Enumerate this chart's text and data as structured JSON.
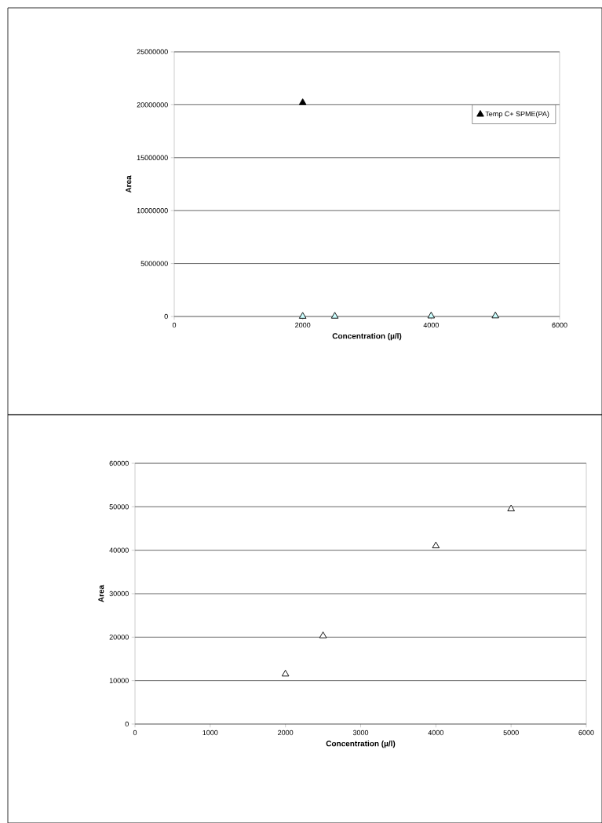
{
  "chart_data": [
    {
      "type": "scatter",
      "xlabel": "Concentration (µ/l)",
      "ylabel": "Area",
      "x": [
        2000,
        2500,
        4000,
        5000
      ],
      "xlim": [
        0,
        6000
      ],
      "xticks": [
        0,
        2000,
        4000,
        6000
      ],
      "ylim": [
        0,
        25000000
      ],
      "yticks": [
        0,
        5000000,
        10000000,
        15000000,
        20000000,
        25000000
      ],
      "grid": "y",
      "marker": "triangle",
      "legend": "top right",
      "series": [
        {
          "color": "#ccffff",
          "values": [
            11500,
            20300,
            41000,
            49500
          ]
        },
        {
          "name": "Temp C+ SPME(PA)",
          "color": "#000000",
          "x": [
            2000
          ],
          "values": [
            20200000
          ]
        }
      ]
    },
    {
      "type": "scatter",
      "xlabel": "Concentration (µ/l)",
      "ylabel": "Area",
      "x": [
        2000,
        2500,
        4000,
        5000
      ],
      "xlim": [
        0,
        6000
      ],
      "xticks": [
        0,
        1000,
        2000,
        3000,
        4000,
        5000,
        6000
      ],
      "ylim": [
        0,
        60000
      ],
      "yticks": [
        0,
        10000,
        20000,
        30000,
        40000,
        50000,
        60000
      ],
      "grid": "y",
      "marker": "triangle",
      "series": [
        {
          "color": "#ffffff",
          "values": [
            11500,
            20300,
            41000,
            49500
          ]
        }
      ]
    }
  ]
}
